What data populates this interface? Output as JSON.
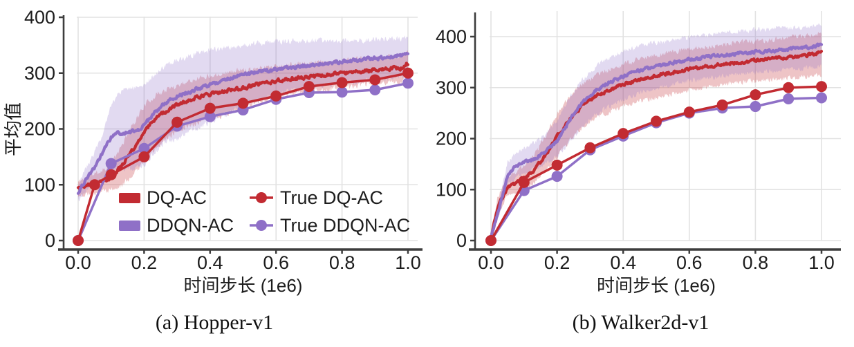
{
  "figure": {
    "captions": {
      "a": "(a) Hopper-v1",
      "b": "(b) Walker2d-v1"
    }
  },
  "colors": {
    "red": "#c22b32",
    "purple": "#8f70c7",
    "red_band": "rgba(194,43,50,0.28)",
    "purple_band": "rgba(143,112,199,0.26)",
    "grid": "#e2e2e2",
    "axis": "#3d3d3d",
    "text": "#1c1c1c"
  },
  "legend": {
    "items": [
      {
        "label": "DQ-AC",
        "swatch": "patch",
        "color": "red"
      },
      {
        "label": "DDQN-AC",
        "swatch": "patch",
        "color": "purple"
      },
      {
        "label": "True DQ-AC",
        "swatch": "line-marker",
        "color": "red"
      },
      {
        "label": "True DDQN-AC",
        "swatch": "line-marker",
        "color": "purple"
      }
    ]
  },
  "chart_data": [
    {
      "type": "line",
      "title": "(a) Hopper-v1",
      "xlabel": "时间步长 (1e6)",
      "ylabel": "平均值",
      "xlim": [
        0,
        1
      ],
      "ylim": [
        0,
        400
      ],
      "grid": true,
      "legend_position": "lower center",
      "xticks": {
        "values": [
          0,
          0.2,
          0.4,
          0.6,
          0.8,
          1.0
        ],
        "labels": [
          "0.0",
          "0.2",
          "0.4",
          "0.6",
          "0.8",
          "1.0"
        ]
      },
      "yticks": {
        "values": [
          0,
          100,
          200,
          300,
          400
        ],
        "labels": [
          "0",
          "100",
          "200",
          "300",
          "400"
        ]
      },
      "series": [
        {
          "name": "DQ-AC",
          "style": "noisy-band",
          "color": "red",
          "x": [
            0,
            0.03,
            0.06,
            0.1,
            0.13,
            0.16,
            0.2,
            0.24,
            0.28,
            0.32,
            0.36,
            0.4,
            0.45,
            0.5,
            0.55,
            0.6,
            0.65,
            0.7,
            0.75,
            0.8,
            0.85,
            0.9,
            0.95,
            0.98,
            1.0
          ],
          "mean": [
            92,
            100,
            104,
            112,
            132,
            158,
            196,
            222,
            236,
            248,
            257,
            262,
            268,
            273,
            280,
            286,
            290,
            293,
            296,
            300,
            302,
            305,
            308,
            309,
            318
          ],
          "lo": [
            78,
            84,
            87,
            90,
            98,
            114,
            142,
            168,
            188,
            202,
            212,
            217,
            227,
            237,
            249,
            257,
            263,
            267,
            271,
            275,
            278,
            281,
            284,
            285,
            295
          ],
          "hi": [
            105,
            116,
            122,
            136,
            168,
            202,
            242,
            263,
            273,
            283,
            291,
            296,
            301,
            306,
            310,
            313,
            315,
            317,
            320,
            322,
            325,
            327,
            330,
            331,
            341
          ]
        },
        {
          "name": "DDQN-AC",
          "style": "noisy-band",
          "color": "purple",
          "x": [
            0,
            0.03,
            0.06,
            0.08,
            0.1,
            0.12,
            0.15,
            0.18,
            0.2,
            0.23,
            0.26,
            0.3,
            0.34,
            0.38,
            0.42,
            0.46,
            0.5,
            0.55,
            0.6,
            0.65,
            0.7,
            0.75,
            0.8,
            0.85,
            0.9,
            0.95,
            1.0
          ],
          "mean": [
            86,
            115,
            140,
            165,
            185,
            192,
            193,
            197,
            207,
            228,
            245,
            258,
            267,
            276,
            283,
            291,
            297,
            302,
            307,
            311,
            314,
            318,
            321,
            324,
            327,
            329,
            333
          ],
          "lo": [
            72,
            92,
            102,
            112,
            122,
            127,
            129,
            131,
            136,
            156,
            176,
            182,
            196,
            206,
            217,
            230,
            242,
            254,
            263,
            269,
            273,
            278,
            282,
            285,
            289,
            291,
            295
          ],
          "hi": [
            100,
            136,
            168,
            202,
            242,
            263,
            272,
            273,
            279,
            296,
            312,
            323,
            331,
            338,
            342,
            347,
            351,
            354,
            356,
            357,
            358,
            358,
            359,
            359,
            360,
            361,
            363
          ]
        },
        {
          "name": "True DQ-AC",
          "style": "line-markers",
          "color": "red",
          "x": [
            0,
            0.05,
            0.1,
            0.2,
            0.3,
            0.4,
            0.5,
            0.6,
            0.7,
            0.8,
            0.9,
            1.0
          ],
          "y": [
            0,
            100,
            118,
            150,
            212,
            237,
            246,
            259,
            276,
            283,
            288,
            300
          ]
        },
        {
          "name": "True DDQN-AC",
          "style": "line-markers",
          "color": "purple",
          "x": [
            0,
            0.1,
            0.2,
            0.3,
            0.4,
            0.5,
            0.6,
            0.7,
            0.8,
            0.9,
            1.0
          ],
          "y": [
            0,
            138,
            165,
            205,
            222,
            234,
            253,
            265,
            266,
            270,
            282
          ]
        }
      ]
    },
    {
      "type": "line",
      "title": "(b) Walker2d-v1",
      "xlabel": "时间步长 (1e6)",
      "ylabel": "",
      "xlim": [
        0,
        1
      ],
      "ylim": [
        0,
        400
      ],
      "grid": true,
      "legend_position": "none",
      "xticks": {
        "values": [
          0,
          0.2,
          0.4,
          0.6,
          0.8,
          1.0
        ],
        "labels": [
          "0.0",
          "0.2",
          "0.4",
          "0.6",
          "0.8",
          "1.0"
        ]
      },
      "yticks": {
        "values": [
          0,
          100,
          200,
          300,
          400
        ],
        "labels": [
          "0",
          "100",
          "200",
          "300",
          "400"
        ]
      },
      "series": [
        {
          "name": "DQ-AC",
          "style": "noisy-band",
          "color": "red",
          "x": [
            0,
            0.02,
            0.05,
            0.08,
            0.1,
            0.13,
            0.16,
            0.2,
            0.24,
            0.28,
            0.32,
            0.36,
            0.4,
            0.45,
            0.5,
            0.55,
            0.6,
            0.65,
            0.7,
            0.75,
            0.8,
            0.85,
            0.9,
            0.95,
            1.0
          ],
          "mean": [
            5,
            65,
            105,
            115,
            123,
            138,
            162,
            205,
            240,
            268,
            285,
            296,
            306,
            316,
            324,
            330,
            336,
            341,
            346,
            350,
            353,
            356,
            359,
            363,
            370
          ],
          "lo": [
            0,
            50,
            88,
            95,
            100,
            112,
            133,
            165,
            198,
            224,
            241,
            253,
            263,
            273,
            281,
            288,
            295,
            301,
            306,
            310,
            313,
            316,
            318,
            321,
            326
          ],
          "hi": [
            12,
            85,
            124,
            138,
            148,
            168,
            198,
            248,
            285,
            308,
            324,
            336,
            346,
            356,
            363,
            369,
            375,
            379,
            384,
            388,
            391,
            394,
            397,
            401,
            406
          ]
        },
        {
          "name": "DDQN-AC",
          "style": "noisy-band",
          "color": "purple",
          "x": [
            0,
            0.02,
            0.05,
            0.08,
            0.1,
            0.13,
            0.16,
            0.2,
            0.24,
            0.28,
            0.32,
            0.36,
            0.4,
            0.45,
            0.5,
            0.55,
            0.6,
            0.65,
            0.7,
            0.75,
            0.8,
            0.85,
            0.9,
            0.95,
            1.0
          ],
          "mean": [
            5,
            50,
            128,
            148,
            153,
            160,
            172,
            195,
            238,
            272,
            296,
            311,
            322,
            334,
            342,
            349,
            355,
            360,
            364,
            367,
            370,
            373,
            375,
            378,
            383
          ],
          "lo": [
            0,
            40,
            108,
            125,
            131,
            139,
            148,
            164,
            195,
            226,
            249,
            263,
            276,
            289,
            299,
            306,
            313,
            318,
            323,
            327,
            330,
            333,
            335,
            338,
            342
          ],
          "hi": [
            12,
            65,
            152,
            173,
            182,
            190,
            204,
            235,
            283,
            318,
            344,
            359,
            371,
            381,
            388,
            394,
            399,
            403,
            407,
            410,
            413,
            415,
            417,
            419,
            424
          ]
        },
        {
          "name": "True DQ-AC",
          "style": "line-markers",
          "color": "red",
          "x": [
            0,
            0.1,
            0.2,
            0.3,
            0.4,
            0.5,
            0.6,
            0.7,
            0.8,
            0.9,
            1.0
          ],
          "y": [
            0,
            114,
            148,
            182,
            210,
            234,
            252,
            266,
            286,
            300,
            302
          ]
        },
        {
          "name": "True DDQN-AC",
          "style": "line-markers",
          "color": "purple",
          "x": [
            0,
            0.1,
            0.2,
            0.3,
            0.4,
            0.5,
            0.6,
            0.7,
            0.8,
            0.9,
            1.0
          ],
          "y": [
            0,
            98,
            126,
            178,
            205,
            231,
            250,
            260,
            263,
            278,
            280
          ]
        }
      ]
    }
  ]
}
